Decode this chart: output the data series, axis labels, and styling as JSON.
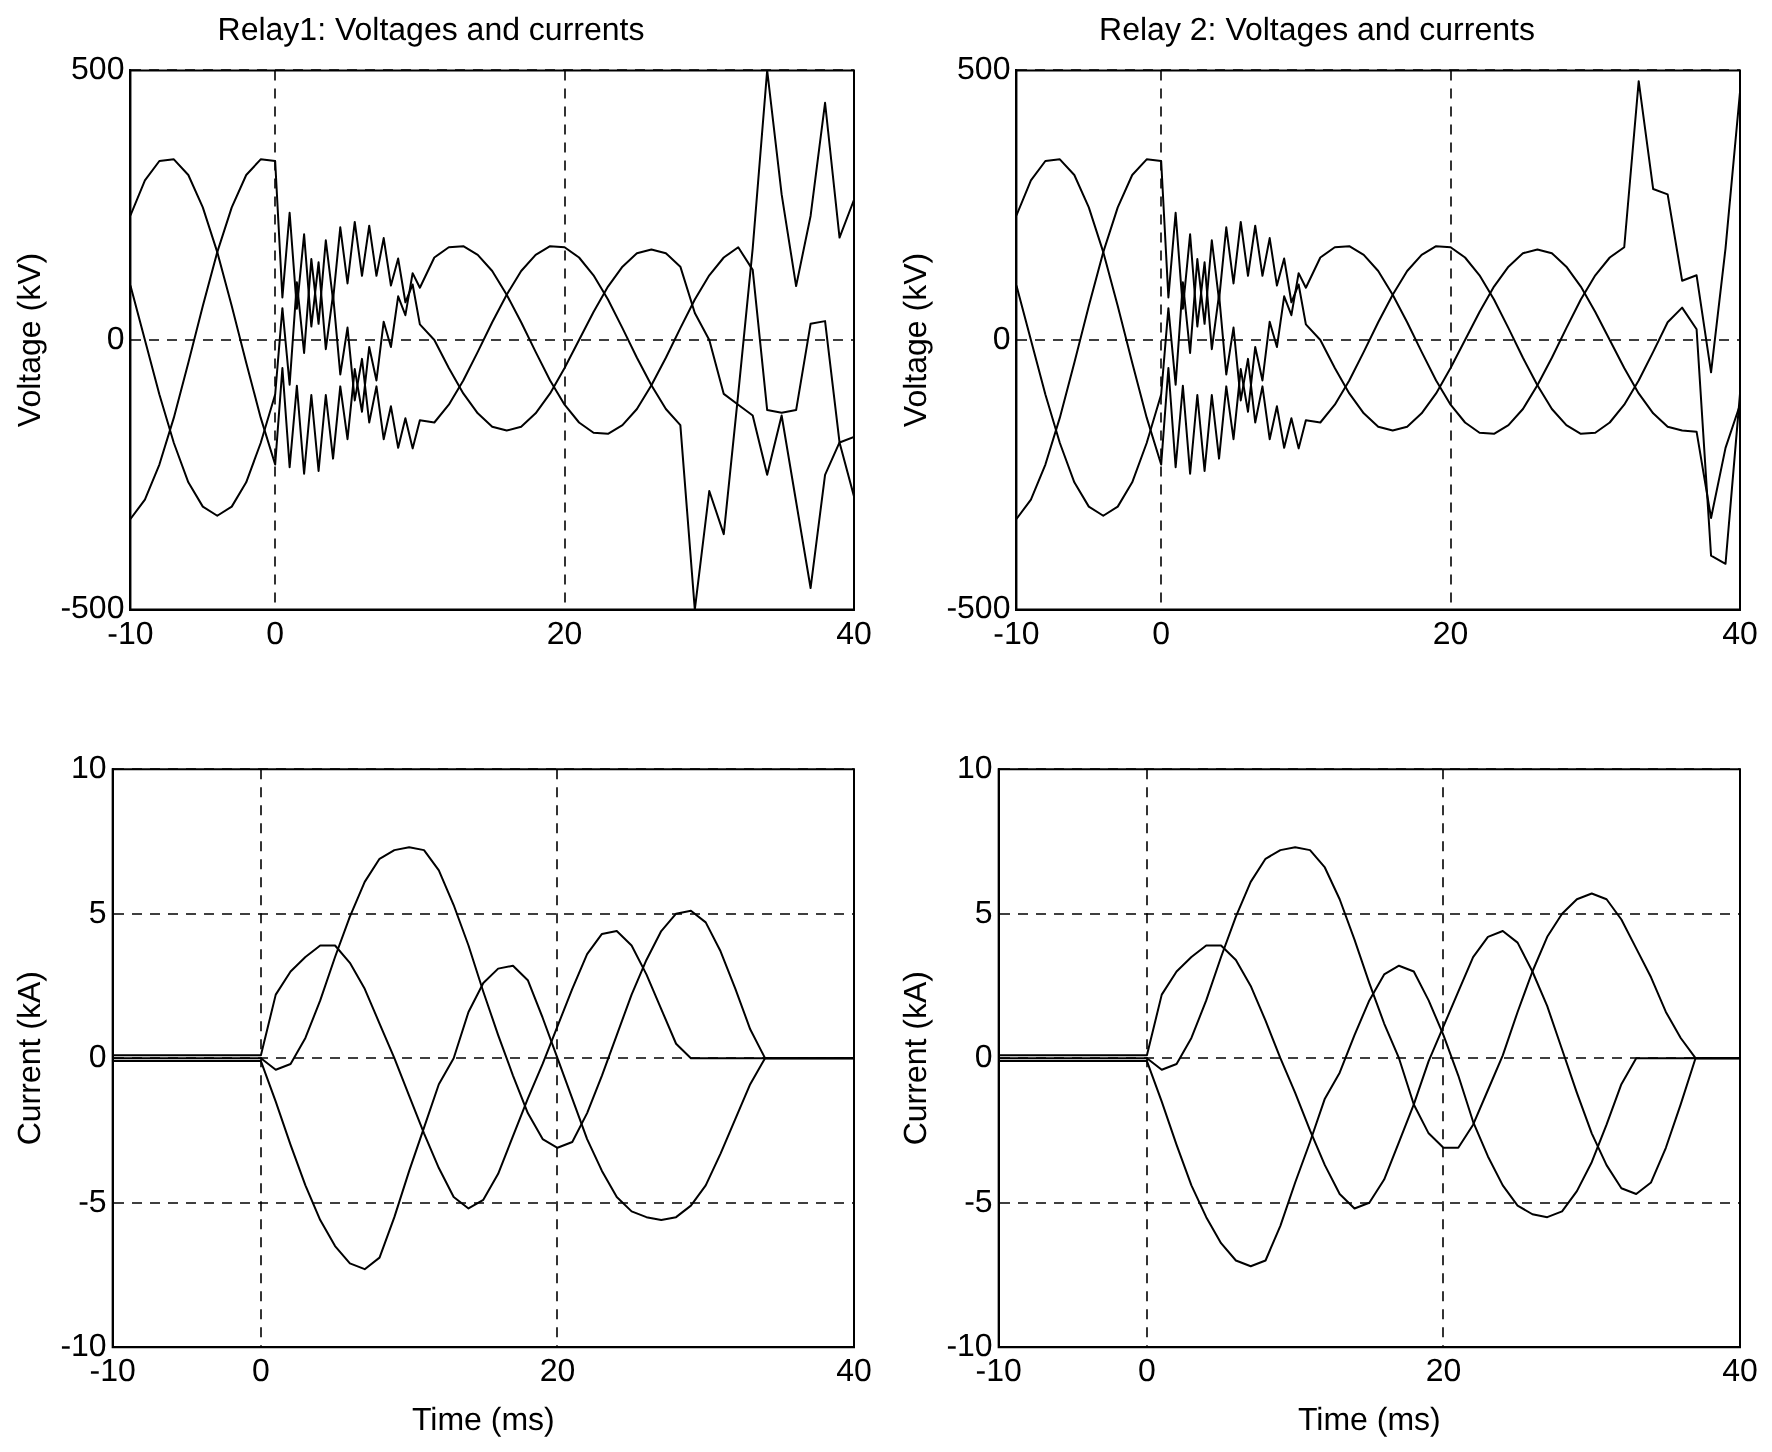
{
  "chart_data": [
    {
      "type": "line",
      "title": "Relay1: Voltages and currents",
      "ylabel": "Voltage (kV)",
      "x": [
        -10,
        -9,
        -8,
        -7,
        -6,
        -5,
        -4,
        -3,
        -2,
        -1,
        0,
        0.5,
        1,
        1.5,
        2,
        2.5,
        3,
        3.5,
        4,
        4.5,
        5,
        5.5,
        6,
        6.5,
        7,
        7.5,
        8,
        8.5,
        9,
        9.5,
        10,
        11,
        12,
        13,
        14,
        15,
        16,
        17,
        18,
        19,
        20,
        21,
        22,
        23,
        24,
        25,
        26,
        27,
        28,
        29,
        30,
        31,
        32,
        33,
        34,
        35,
        36,
        37,
        38,
        39,
        40
      ],
      "series": [
        {
          "color": "#000000",
          "values": [
            231,
            296,
            332,
            335,
            306,
            246,
            163,
            63,
            -42,
            -144,
            -231,
            -52,
            -236,
            -85,
            -248,
            -102,
            -243,
            -102,
            -220,
            -86,
            -184,
            -54,
            -133,
            -13,
            -75,
            34,
            -13,
            81,
            46,
            124,
            97,
            153,
            172,
            174,
            158,
            128,
            84,
            33,
            -22,
            -75,
            -120,
            -153,
            -172,
            -174,
            -158,
            -128,
            -84,
            -33,
            22,
            75,
            120,
            153,
            172,
            130,
            -130,
            -135,
            -130,
            30,
            35,
            -190,
            -180
          ]
        },
        {
          "color": "#000000",
          "values": [
            -332,
            -296,
            -231,
            -144,
            -42,
            63,
            163,
            246,
            306,
            335,
            332,
            79,
            236,
            58,
            196,
            25,
            144,
            -17,
            84,
            -64,
            23,
            -112,
            -35,
            -153,
            -86,
            -184,
            -123,
            -200,
            -145,
            -201,
            -149,
            -153,
            -120,
            -75,
            -22,
            33,
            84,
            128,
            158,
            174,
            172,
            153,
            120,
            75,
            22,
            -33,
            -84,
            -128,
            -158,
            -500,
            -280,
            -360,
            -100,
            170,
            500,
            270,
            100,
            230,
            440,
            190,
            260
          ]
        },
        {
          "color": "#000000",
          "values": [
            101,
            0,
            -101,
            -191,
            -264,
            -309,
            -326,
            -309,
            -264,
            -191,
            -101,
            59,
            -83,
            107,
            -24,
            150,
            30,
            185,
            74,
            209,
            105,
            219,
            119,
            212,
            119,
            189,
            101,
            151,
            70,
            103,
            29,
            0,
            -52,
            -99,
            -136,
            -161,
            -168,
            -161,
            -136,
            -99,
            -52,
            0,
            52,
            99,
            136,
            161,
            168,
            161,
            136,
            50,
            0,
            -100,
            -120,
            -140,
            -250,
            -140,
            -300,
            -460,
            -250,
            -190,
            -290
          ]
        }
      ],
      "xlim": [
        -10,
        40
      ],
      "ylim": [
        -500,
        500
      ],
      "xticks": [
        -10,
        0,
        20,
        40
      ],
      "yticks": [
        -500,
        0,
        500
      ],
      "grid": true
    },
    {
      "type": "line",
      "title": "Relay 2: Voltages and currents",
      "ylabel": "Voltage (kV)",
      "x": [
        -10,
        -9,
        -8,
        -7,
        -6,
        -5,
        -4,
        -3,
        -2,
        -1,
        0,
        0.5,
        1,
        1.5,
        2,
        2.5,
        3,
        3.5,
        4,
        4.5,
        5,
        5.5,
        6,
        6.5,
        7,
        7.5,
        8,
        8.5,
        9,
        9.5,
        10,
        11,
        12,
        13,
        14,
        15,
        16,
        17,
        18,
        19,
        20,
        21,
        22,
        23,
        24,
        25,
        26,
        27,
        28,
        29,
        30,
        31,
        32,
        33,
        34,
        35,
        36,
        37,
        38,
        39,
        40
      ],
      "series": [
        {
          "color": "#000000",
          "values": [
            231,
            296,
            332,
            335,
            306,
            246,
            163,
            63,
            -42,
            -144,
            -231,
            -52,
            -236,
            -85,
            -248,
            -102,
            -243,
            -102,
            -220,
            -86,
            -184,
            -54,
            -133,
            -13,
            -75,
            34,
            -13,
            81,
            46,
            124,
            97,
            153,
            172,
            174,
            158,
            128,
            84,
            33,
            -22,
            -75,
            -120,
            -153,
            -172,
            -174,
            -158,
            -128,
            -84,
            -33,
            22,
            75,
            120,
            153,
            172,
            480,
            280,
            270,
            110,
            120,
            -60,
            170,
            460
          ]
        },
        {
          "color": "#000000",
          "values": [
            -332,
            -296,
            -231,
            -144,
            -42,
            63,
            163,
            246,
            306,
            335,
            332,
            79,
            236,
            58,
            196,
            25,
            144,
            -17,
            84,
            -64,
            23,
            -112,
            -35,
            -153,
            -86,
            -184,
            -123,
            -200,
            -145,
            -201,
            -149,
            -153,
            -120,
            -75,
            -22,
            33,
            84,
            128,
            158,
            174,
            172,
            153,
            120,
            75,
            22,
            -33,
            -84,
            -128,
            -158,
            -174,
            -172,
            -153,
            -120,
            -75,
            -22,
            33,
            60,
            20,
            -400,
            -415,
            -100
          ]
        },
        {
          "color": "#000000",
          "values": [
            101,
            0,
            -101,
            -191,
            -264,
            -309,
            -326,
            -309,
            -264,
            -191,
            -101,
            59,
            -83,
            107,
            -24,
            150,
            30,
            185,
            74,
            209,
            105,
            219,
            119,
            212,
            119,
            189,
            101,
            151,
            70,
            103,
            29,
            0,
            -52,
            -99,
            -136,
            -161,
            -168,
            -161,
            -136,
            -99,
            -52,
            0,
            52,
            99,
            136,
            161,
            168,
            161,
            136,
            99,
            52,
            0,
            -52,
            -99,
            -136,
            -161,
            -168,
            -170,
            -330,
            -200,
            -120
          ]
        }
      ],
      "xlim": [
        -10,
        40
      ],
      "ylim": [
        -500,
        500
      ],
      "xticks": [
        -10,
        0,
        20,
        40
      ],
      "yticks": [
        -500,
        0,
        500
      ],
      "grid": true
    },
    {
      "type": "line",
      "xlabel": "Time (ms)",
      "ylabel": "Current (kA)",
      "x": [
        -10,
        -9,
        -8,
        -7,
        -6,
        -5,
        -4,
        -3,
        -2,
        -1,
        0,
        1,
        2,
        3,
        4,
        5,
        6,
        7,
        8,
        9,
        10,
        11,
        12,
        13,
        14,
        15,
        16,
        17,
        18,
        19,
        20,
        21,
        22,
        23,
        24,
        25,
        26,
        27,
        28,
        29,
        30,
        31,
        32,
        33,
        34,
        35,
        36,
        37,
        38,
        39,
        40
      ],
      "series": [
        {
          "color": "#000000",
          "values": [
            0.1,
            0.1,
            0.1,
            0.1,
            0.1,
            0.1,
            0.1,
            0.1,
            0.1,
            0.1,
            0.1,
            2.2,
            3.0,
            3.5,
            3.9,
            3.9,
            3.3,
            2.4,
            1.2,
            0,
            -1.3,
            -2.6,
            -3.8,
            -4.8,
            -5.2,
            -4.9,
            -4.0,
            -2.7,
            -1.4,
            -0.2,
            1.1,
            2.4,
            3.6,
            4.3,
            4.4,
            3.9,
            2.9,
            1.7,
            0.5,
            0,
            0,
            0,
            0,
            0,
            0,
            0,
            0,
            0,
            0,
            0,
            0
          ]
        },
        {
          "color": "#000000",
          "values": [
            0,
            0,
            0,
            0,
            0,
            0,
            0,
            0,
            0,
            0,
            0,
            -0.4,
            -0.2,
            0.7,
            2.0,
            3.5,
            4.9,
            6.1,
            6.9,
            7.2,
            7.3,
            7.2,
            6.5,
            5.3,
            3.9,
            2.3,
            0.8,
            -0.6,
            -1.9,
            -2.8,
            -3.1,
            -2.9,
            -1.9,
            -0.6,
            0.8,
            2.2,
            3.4,
            4.4,
            5.0,
            5.1,
            4.7,
            3.7,
            2.4,
            1.0,
            0,
            0,
            0,
            0,
            0,
            0,
            0
          ]
        },
        {
          "color": "#000000",
          "values": [
            -0.1,
            -0.1,
            -0.1,
            -0.1,
            -0.1,
            -0.1,
            -0.1,
            -0.1,
            -0.1,
            -0.1,
            -0.1,
            -1.5,
            -3.0,
            -4.4,
            -5.6,
            -6.5,
            -7.1,
            -7.3,
            -6.9,
            -5.5,
            -3.9,
            -2.4,
            -0.9,
            0,
            1.6,
            2.6,
            3.1,
            3.2,
            2.7,
            1.4,
            0,
            -1.4,
            -2.8,
            -3.9,
            -4.8,
            -5.3,
            -5.5,
            -5.6,
            -5.5,
            -5.1,
            -4.4,
            -3.3,
            -2.1,
            -0.9,
            0,
            0,
            0,
            0,
            0,
            0,
            0
          ]
        }
      ],
      "xlim": [
        -10,
        40
      ],
      "ylim": [
        -10,
        10
      ],
      "xticks": [
        -10,
        0,
        20,
        40
      ],
      "yticks": [
        -10,
        -5,
        0,
        5,
        10
      ],
      "grid": true
    },
    {
      "type": "line",
      "xlabel": "Time (ms)",
      "ylabel": "Current (kA)",
      "x": [
        -10,
        -9,
        -8,
        -7,
        -6,
        -5,
        -4,
        -3,
        -2,
        -1,
        0,
        1,
        2,
        3,
        4,
        5,
        6,
        7,
        8,
        9,
        10,
        11,
        12,
        13,
        14,
        15,
        16,
        17,
        18,
        19,
        20,
        21,
        22,
        23,
        24,
        25,
        26,
        27,
        28,
        29,
        30,
        31,
        32,
        33,
        34,
        35,
        36,
        37,
        38,
        39,
        40
      ],
      "series": [
        {
          "color": "#000000",
          "values": [
            0.1,
            0.1,
            0.1,
            0.1,
            0.1,
            0.1,
            0.1,
            0.1,
            0.1,
            0.1,
            0.1,
            2.2,
            3.0,
            3.5,
            3.9,
            3.9,
            3.4,
            2.5,
            1.3,
            0,
            -1.2,
            -2.5,
            -3.7,
            -4.7,
            -5.2,
            -5.0,
            -4.2,
            -2.9,
            -1.6,
            -0.1,
            1.1,
            2.3,
            3.5,
            4.2,
            4.4,
            4.0,
            3.0,
            1.8,
            0.3,
            -1.2,
            -2.6,
            -3.7,
            -4.5,
            -4.7,
            -4.3,
            -3.1,
            -1.6,
            0,
            0,
            0,
            0
          ]
        },
        {
          "color": "#000000",
          "values": [
            0,
            0,
            0,
            0,
            0,
            0,
            0,
            0,
            0,
            0,
            0,
            -0.4,
            -0.2,
            0.7,
            2.0,
            3.5,
            4.9,
            6.1,
            6.9,
            7.2,
            7.3,
            7.2,
            6.6,
            5.5,
            4.1,
            2.6,
            1.2,
            0,
            -1.6,
            -2.6,
            -3.1,
            -3.1,
            -2.3,
            -1.1,
            0.1,
            1.6,
            3.0,
            4.2,
            5.0,
            5.5,
            5.7,
            5.5,
            4.8,
            3.8,
            2.8,
            1.6,
            0.7,
            0,
            0,
            0,
            0
          ]
        },
        {
          "color": "#000000",
          "values": [
            -0.1,
            -0.1,
            -0.1,
            -0.1,
            -0.1,
            -0.1,
            -0.1,
            -0.1,
            -0.1,
            -0.1,
            -0.1,
            -1.5,
            -3.0,
            -4.4,
            -5.5,
            -6.4,
            -7.0,
            -7.2,
            -7.0,
            -5.8,
            -4.3,
            -2.9,
            -1.4,
            -0.5,
            0.8,
            2.0,
            2.9,
            3.2,
            3.0,
            2.0,
            0.8,
            -0.6,
            -2.2,
            -3.4,
            -4.4,
            -5.1,
            -5.4,
            -5.5,
            -5.3,
            -4.6,
            -3.6,
            -2.3,
            -0.9,
            0,
            0,
            0,
            0,
            0,
            0,
            0,
            0
          ]
        }
      ],
      "xlim": [
        -10,
        40
      ],
      "ylim": [
        -10,
        10
      ],
      "xticks": [
        -10,
        0,
        20,
        40
      ],
      "yticks": [
        -10,
        -5,
        0,
        5,
        10
      ],
      "grid": true
    }
  ]
}
